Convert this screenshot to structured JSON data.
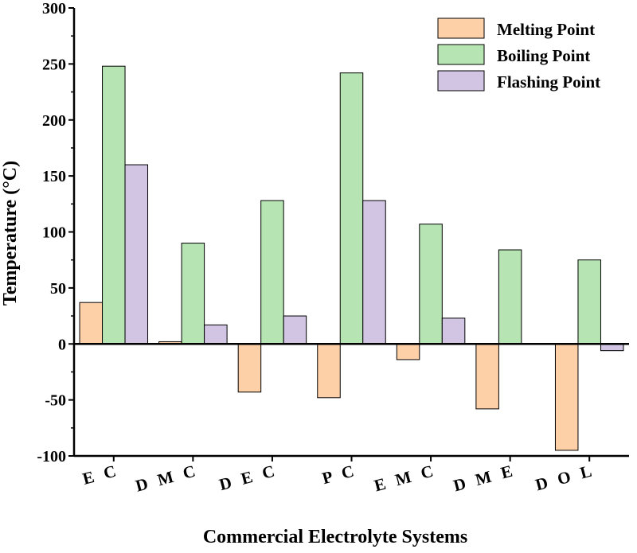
{
  "chart_data": {
    "type": "bar",
    "title": "",
    "xlabel": "Commercial Electrolyte Systems",
    "ylabel": "Temperature (°C)",
    "ylim": [
      -100,
      300
    ],
    "yticks": [
      -100,
      -50,
      0,
      50,
      100,
      150,
      200,
      250,
      300
    ],
    "categories": [
      "E C",
      "D M C",
      "D E C",
      "P C",
      "E M C",
      "D M E",
      "D O L"
    ],
    "series": [
      {
        "name": "Melting Point",
        "color": "#FDD0A7",
        "values": [
          37,
          2,
          -43,
          -48,
          -14,
          -58,
          -95
        ]
      },
      {
        "name": "Boiling Point",
        "color": "#B6E4B2",
        "values": [
          248,
          90,
          128,
          242,
          107,
          84,
          75
        ]
      },
      {
        "name": "Flashing Point",
        "color": "#D2C5E4",
        "values": [
          160,
          17,
          25,
          128,
          23,
          null,
          -6
        ]
      }
    ],
    "legend_position": "top-right",
    "grid": false
  }
}
